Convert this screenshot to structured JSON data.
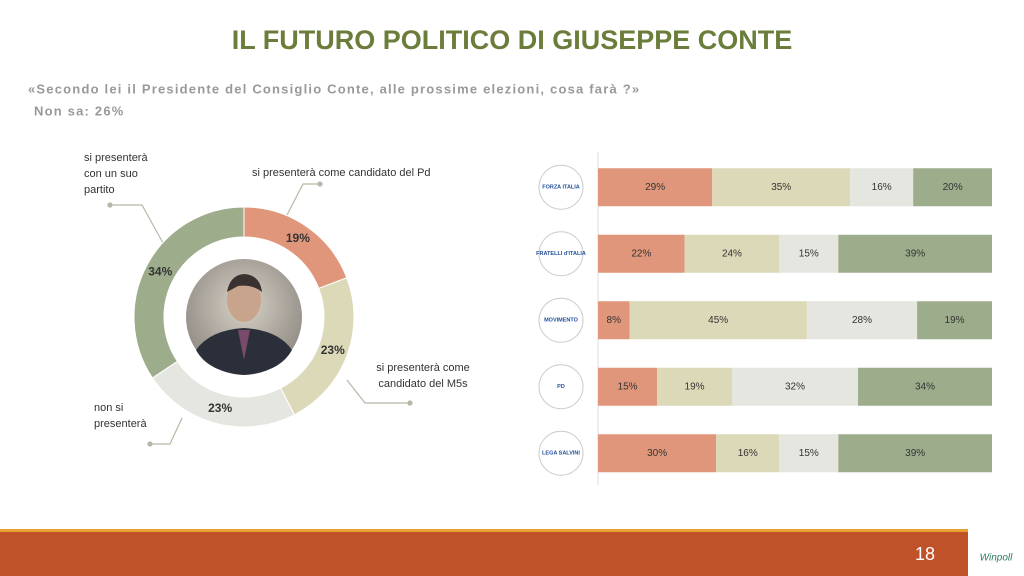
{
  "slide": {
    "title": "IL FUTURO POLITICO DI GIUSEPPE CONTE",
    "question": "«Secondo lei il Presidente del Consiglio Conte, alle prossime elezioni, cosa farà ?»",
    "note": "Non sa: 26%",
    "page_number": "18",
    "brand": "Winpoll"
  },
  "chart_data": [
    {
      "type": "donut",
      "categories": [
        "si presenterà come candidato del Pd",
        "si presenterà come candidato del M5s",
        "non si presenterà",
        "si presenterà con un suo partito"
      ],
      "values": [
        19,
        23,
        23,
        34
      ],
      "value_labels": [
        "19%",
        "23%",
        "23%",
        "34%"
      ],
      "colors": [
        "#e0967a",
        "#dcd9b8",
        "#e4e6df",
        "#9dac8b"
      ]
    },
    {
      "type": "stacked-bar",
      "orientation": "horizontal",
      "categories": [
        "FORZA ITALIA",
        "FRATELLI d'ITALIA",
        "MOVIMENTO",
        "PD",
        "LEGA SALVINI"
      ],
      "xlim": [
        0,
        100
      ],
      "series": [
        {
          "color": "#e0967a",
          "values": [
            29,
            22,
            8,
            15,
            30
          ],
          "value_labels": [
            "29%",
            "22%",
            "8%",
            "15%",
            "30%"
          ]
        },
        {
          "color": "#dcd9b8",
          "values": [
            35,
            24,
            45,
            19,
            16
          ],
          "value_labels": [
            "35%",
            "24%",
            "45%",
            "19%",
            "16%"
          ]
        },
        {
          "color": "#e4e6df",
          "values": [
            16,
            15,
            28,
            32,
            15
          ],
          "value_labels": [
            "16%",
            "15%",
            "28%",
            "32%",
            "15%"
          ]
        },
        {
          "color": "#9dac8b",
          "values": [
            20,
            39,
            19,
            34,
            39
          ],
          "value_labels": [
            "20%",
            "39%",
            "19%",
            "34%",
            "39%"
          ]
        }
      ]
    }
  ]
}
